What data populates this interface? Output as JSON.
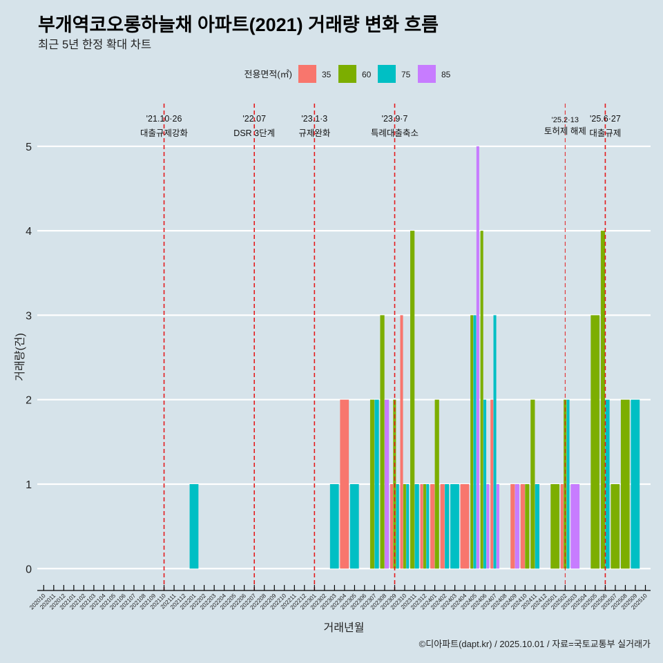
{
  "chart_data": {
    "type": "bar",
    "title": "부개역코오롱하늘채 아파트(2021) 거래량 변화 흐름",
    "subtitle": "최근 5년 한정 확대 차트",
    "xlabel": "거래년월",
    "ylabel": "거래량(건)",
    "caption": "©디아파트(dapt.kr) / 2025.10.01 / 자료=국토교통부 실거래가",
    "ylim": [
      0,
      5
    ],
    "yticks": [
      0,
      1,
      2,
      3,
      4,
      5
    ],
    "grid": "horizontal",
    "legend": {
      "title": "전용면적(㎡)",
      "position": "top"
    },
    "categories": [
      "202010",
      "202011",
      "202012",
      "202101",
      "202102",
      "202103",
      "202104",
      "202105",
      "202106",
      "202107",
      "202108",
      "202109",
      "202110",
      "202111",
      "202112",
      "202201",
      "202202",
      "202203",
      "202204",
      "202205",
      "202206",
      "202207",
      "202208",
      "202209",
      "202210",
      "202211",
      "202212",
      "202301",
      "202302",
      "202303",
      "202304",
      "202305",
      "202306",
      "202307",
      "202308",
      "202309",
      "202310",
      "202311",
      "202312",
      "202401",
      "202402",
      "202403",
      "202404",
      "202405",
      "202406",
      "202407",
      "202408",
      "202409",
      "202410",
      "202411",
      "202412",
      "202501",
      "202502",
      "202503",
      "202504",
      "202505",
      "202506",
      "202507",
      "202508",
      "202509",
      "202510"
    ],
    "series": [
      {
        "name": "35",
        "color": "#F8766D",
        "points": [
          {
            "x": "202304",
            "y": 2
          },
          {
            "x": "202309",
            "y": 1
          },
          {
            "x": "202310",
            "y": 3
          },
          {
            "x": "202312",
            "y": 1
          },
          {
            "x": "202401",
            "y": 1
          },
          {
            "x": "202402",
            "y": 1
          },
          {
            "x": "202404",
            "y": 1
          },
          {
            "x": "202407",
            "y": 2
          },
          {
            "x": "202409",
            "y": 1
          },
          {
            "x": "202410",
            "y": 1
          },
          {
            "x": "202502",
            "y": 1
          }
        ]
      },
      {
        "name": "60",
        "color": "#7CAE00",
        "points": [
          {
            "x": "202307",
            "y": 2
          },
          {
            "x": "202308",
            "y": 3
          },
          {
            "x": "202309",
            "y": 2
          },
          {
            "x": "202310",
            "y": 1
          },
          {
            "x": "202311",
            "y": 4
          },
          {
            "x": "202312",
            "y": 1
          },
          {
            "x": "202401",
            "y": 2
          },
          {
            "x": "202405",
            "y": 3
          },
          {
            "x": "202406",
            "y": 4
          },
          {
            "x": "202410",
            "y": 1
          },
          {
            "x": "202411",
            "y": 2
          },
          {
            "x": "202501",
            "y": 1
          },
          {
            "x": "202502",
            "y": 2
          },
          {
            "x": "202505",
            "y": 3
          },
          {
            "x": "202506",
            "y": 4
          },
          {
            "x": "202507",
            "y": 1
          },
          {
            "x": "202508",
            "y": 2
          }
        ]
      },
      {
        "name": "75",
        "color": "#00BFC4",
        "points": [
          {
            "x": "202201",
            "y": 1
          },
          {
            "x": "202303",
            "y": 1
          },
          {
            "x": "202305",
            "y": 1
          },
          {
            "x": "202307",
            "y": 2
          },
          {
            "x": "202309",
            "y": 1
          },
          {
            "x": "202310",
            "y": 1
          },
          {
            "x": "202311",
            "y": 1
          },
          {
            "x": "202312",
            "y": 1
          },
          {
            "x": "202402",
            "y": 1
          },
          {
            "x": "202403",
            "y": 1
          },
          {
            "x": "202405",
            "y": 3
          },
          {
            "x": "202406",
            "y": 2
          },
          {
            "x": "202407",
            "y": 3
          },
          {
            "x": "202411",
            "y": 1
          },
          {
            "x": "202502",
            "y": 2
          },
          {
            "x": "202506",
            "y": 2
          },
          {
            "x": "202509",
            "y": 2
          }
        ]
      },
      {
        "name": "85",
        "color": "#C77CFF",
        "points": [
          {
            "x": "202308",
            "y": 2
          },
          {
            "x": "202405",
            "y": 5
          },
          {
            "x": "202406",
            "y": 1
          },
          {
            "x": "202407",
            "y": 1
          },
          {
            "x": "202409",
            "y": 1
          },
          {
            "x": "202503",
            "y": 1
          }
        ]
      }
    ],
    "annotations": [
      {
        "x": "202110",
        "date": "'21.10·26",
        "label": "대출규제강화"
      },
      {
        "x": "202207",
        "date": "'22.07",
        "label": "DSR 3단계"
      },
      {
        "x": "202301",
        "date": "'23.1·3",
        "label": "규제완화"
      },
      {
        "x": "202309",
        "date": "'23.9·7",
        "label": "특례대출축소"
      },
      {
        "x": "202502",
        "date": "'25.2·13",
        "label": "토허제 해제",
        "minor": true
      },
      {
        "x": "202506",
        "date": "'25.6·27",
        "label": "대출규제"
      }
    ]
  },
  "colors": {
    "background": "#d6e3ea",
    "grid": "#ffffff",
    "event_line": "#e31a1c",
    "axis": "#000000"
  }
}
